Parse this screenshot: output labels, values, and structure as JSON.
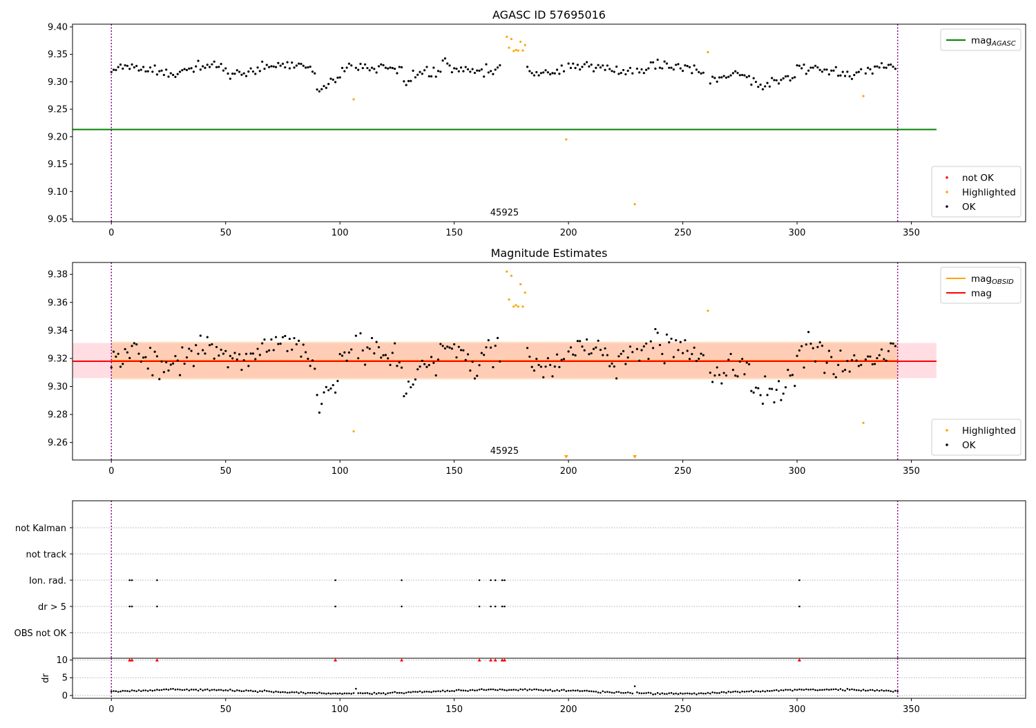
{
  "chart_data": [
    {
      "type": "scatter",
      "title": "AGASC ID 57695016",
      "annotation": "45925",
      "xlim": [
        -17,
        400
      ],
      "ylim": [
        9.045,
        9.405
      ],
      "xticks": [
        0,
        50,
        100,
        150,
        200,
        250,
        300,
        350
      ],
      "yticks": [
        9.05,
        9.1,
        9.15,
        9.2,
        9.25,
        9.3,
        9.35,
        9.4
      ],
      "ytick_format": 2,
      "hlines": [
        {
          "name": "mag_AGASC",
          "value": 9.213,
          "x_range": [
            -17,
            361
          ],
          "color": "#008000"
        }
      ],
      "vlines": [
        0,
        344
      ],
      "ok_segments": [
        {
          "x": [
            0,
            90
          ],
          "base": [
            9.318,
            9.327
          ]
        },
        {
          "x": [
            90,
            100
          ],
          "base": [
            9.29,
            9.31
          ]
        },
        {
          "x": [
            100,
            128
          ],
          "base": [
            9.318,
            9.33
          ]
        },
        {
          "x": [
            128,
            145
          ],
          "base": [
            9.305,
            9.315
          ]
        },
        {
          "x": [
            145,
            171
          ],
          "base": [
            9.33,
            9.318
          ]
        },
        {
          "x": [
            181,
            260
          ],
          "base": [
            9.32,
            9.327
          ]
        },
        {
          "x": [
            261,
            280
          ],
          "base": [
            9.305,
            9.31
          ]
        },
        {
          "x": [
            280,
            300
          ],
          "base": [
            9.295,
            9.31
          ]
        },
        {
          "x": [
            300,
            344
          ],
          "base": [
            9.32,
            9.318
          ]
        }
      ],
      "highlighted": [
        [
          106,
          9.268
        ],
        [
          173,
          9.382
        ],
        [
          174,
          9.362
        ],
        [
          175,
          9.378
        ],
        [
          176,
          9.356
        ],
        [
          177,
          9.358
        ],
        [
          178,
          9.357
        ],
        [
          179,
          9.373
        ],
        [
          180,
          9.357
        ],
        [
          181,
          9.367
        ],
        [
          199,
          9.195
        ],
        [
          229,
          9.077
        ],
        [
          261,
          9.354
        ],
        [
          329,
          9.274
        ]
      ],
      "legend_upper": [
        {
          "label": "mag",
          "sub": "AGASC",
          "color": "#008000",
          "kind": "line"
        }
      ],
      "legend_lower": [
        {
          "label": "not OK",
          "color": "#ff0000",
          "kind": "dot"
        },
        {
          "label": "Highlighted",
          "color": "#ffa500",
          "kind": "dot"
        },
        {
          "label": "OK",
          "color": "#000000",
          "kind": "dot"
        }
      ]
    },
    {
      "type": "scatter",
      "title": "Magnitude Estimates",
      "annotation": "45925",
      "xlim": [
        -17,
        400
      ],
      "ylim": [
        9.2475,
        9.3885
      ],
      "xticks": [
        0,
        50,
        100,
        150,
        200,
        250,
        300,
        350
      ],
      "yticks": [
        9.26,
        9.28,
        9.3,
        9.32,
        9.34,
        9.36,
        9.38
      ],
      "ytick_format": 2,
      "bands": [
        {
          "y": [
            9.306,
            9.331
          ],
          "x_range": [
            -17,
            361
          ],
          "color": "#ff8fa0",
          "opacity": 0.3
        },
        {
          "y": [
            9.305,
            9.332
          ],
          "x_range": [
            0,
            344
          ],
          "color": "#ffb060",
          "opacity": 0.35
        }
      ],
      "hlines": [
        {
          "name": "mag_OBSID",
          "value": 9.3185,
          "x_range": [
            0,
            344
          ],
          "color": "#ffa500"
        },
        {
          "name": "mag",
          "value": 9.318,
          "x_range": [
            -17,
            361
          ],
          "color": "#ff0000"
        }
      ],
      "vlines": [
        0,
        344
      ],
      "ok_segments": [
        {
          "x": [
            0,
            90
          ],
          "base": [
            9.318,
            9.327
          ]
        },
        {
          "x": [
            90,
            100
          ],
          "base": [
            9.29,
            9.31
          ]
        },
        {
          "x": [
            100,
            128
          ],
          "base": [
            9.318,
            9.33
          ]
        },
        {
          "x": [
            128,
            145
          ],
          "base": [
            9.305,
            9.315
          ]
        },
        {
          "x": [
            145,
            171
          ],
          "base": [
            9.33,
            9.318
          ]
        },
        {
          "x": [
            181,
            260
          ],
          "base": [
            9.32,
            9.327
          ]
        },
        {
          "x": [
            261,
            280
          ],
          "base": [
            9.305,
            9.31
          ]
        },
        {
          "x": [
            280,
            300
          ],
          "base": [
            9.295,
            9.31
          ]
        },
        {
          "x": [
            300,
            344
          ],
          "base": [
            9.32,
            9.318
          ]
        }
      ],
      "highlighted": [
        [
          106,
          9.268
        ],
        [
          173,
          9.382
        ],
        [
          174,
          9.362
        ],
        [
          175,
          9.379
        ],
        [
          176,
          9.357
        ],
        [
          177,
          9.358
        ],
        [
          178,
          9.357
        ],
        [
          179,
          9.373
        ],
        [
          180,
          9.357
        ],
        [
          181,
          9.367
        ],
        [
          261,
          9.354
        ],
        [
          329,
          9.274
        ]
      ],
      "highlighted_clipped": [
        199,
        229
      ],
      "legend_upper": [
        {
          "label": "mag",
          "sub": "OBSID",
          "color": "#ffa500",
          "kind": "line"
        },
        {
          "label": "mag",
          "sub": "",
          "color": "#ff0000",
          "kind": "line"
        }
      ],
      "legend_lower": [
        {
          "label": "Highlighted",
          "color": "#ffa500",
          "kind": "dot"
        },
        {
          "label": "OK",
          "color": "#000000",
          "kind": "dot"
        }
      ]
    },
    {
      "type": "scatter",
      "xlim": [
        -17,
        400
      ],
      "categories": [
        "OBS not OK",
        "dr > 5",
        "Ion. rad.",
        "not track",
        "not Kalman"
      ],
      "vlines": [
        0,
        344
      ],
      "flag_points": {
        "Ion. rad.": [
          8,
          9,
          20,
          98,
          127,
          161,
          166,
          168,
          171,
          172,
          301
        ],
        "dr > 5": [
          8,
          9,
          20,
          98,
          127,
          161,
          166,
          168,
          171,
          172,
          301
        ]
      }
    },
    {
      "type": "scatter",
      "ylabel": "dr",
      "xlim": [
        -17,
        400
      ],
      "ylim": [
        -0.8,
        10.5
      ],
      "xticks": [
        0,
        50,
        100,
        150,
        200,
        250,
        300,
        350
      ],
      "yticks": [
        0,
        5,
        10
      ],
      "ytick_format": 0,
      "vlines": [
        0,
        344
      ],
      "clipped_markers": [
        8,
        9,
        20,
        98,
        127,
        161,
        166,
        168,
        171,
        172,
        301
      ],
      "clipped_value": 10,
      "dr_range": [
        0,
        344
      ],
      "dr_base": 1.1,
      "dr_spikes": [
        [
          229,
          2.6
        ],
        [
          107,
          1.9
        ]
      ]
    }
  ]
}
